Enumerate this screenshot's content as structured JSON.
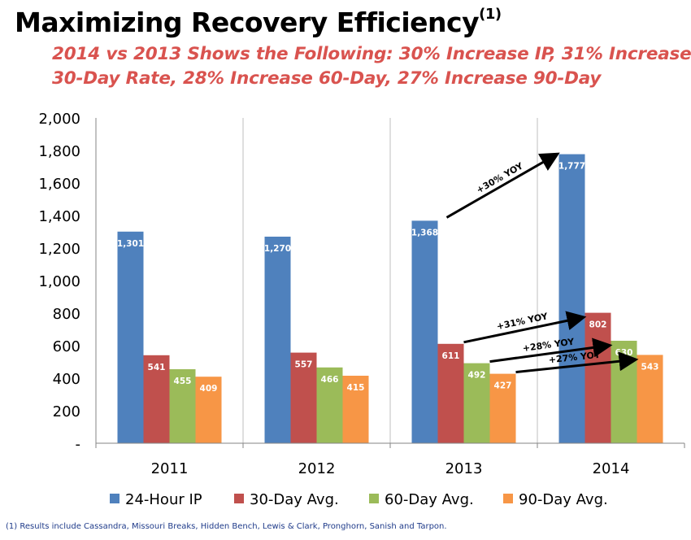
{
  "title": {
    "main": "Maximizing Recovery Efficiency",
    "superscript": "(1)"
  },
  "subtitle": {
    "line1": "2014 vs 2013 Shows the Following: 30% Increase IP, 31% Increase",
    "line2": "30-Day Rate, 28% Increase 60-Day, 27% Increase 90-Day",
    "color": "#d9534f"
  },
  "chart_data": {
    "type": "bar",
    "categories": [
      "2011",
      "2012",
      "2013",
      "2014"
    ],
    "series": [
      {
        "name": "24-Hour IP",
        "values": [
          1301,
          1270,
          1368,
          1777
        ],
        "labels": [
          "1,301",
          "1,270",
          "1,368",
          "1,777"
        ],
        "color": "#4f81bd"
      },
      {
        "name": "30-Day Avg.",
        "values": [
          541,
          557,
          611,
          802
        ],
        "labels": [
          "541",
          "557",
          "611",
          "802"
        ],
        "color": "#c0504d"
      },
      {
        "name": "60-Day Avg.",
        "values": [
          455,
          466,
          492,
          630
        ],
        "labels": [
          "455",
          "466",
          "492",
          "630"
        ],
        "color": "#9bbb59"
      },
      {
        "name": "90-Day Avg.",
        "values": [
          409,
          415,
          427,
          543
        ],
        "labels": [
          "409",
          "415",
          "427",
          "543"
        ],
        "color": "#f79646"
      }
    ],
    "ylim": [
      0,
      2000
    ],
    "yticks": [
      {
        "value": 0,
        "label": "-"
      },
      {
        "value": 200,
        "label": "200"
      },
      {
        "value": 400,
        "label": "400"
      },
      {
        "value": 600,
        "label": "600"
      },
      {
        "value": 800,
        "label": "800"
      },
      {
        "value": 1000,
        "label": "1,000"
      },
      {
        "value": 1200,
        "label": "1,200"
      },
      {
        "value": 1400,
        "label": "1,400"
      },
      {
        "value": 1600,
        "label": "1,600"
      },
      {
        "value": 1800,
        "label": "1,800"
      },
      {
        "value": 2000,
        "label": "2,000"
      }
    ],
    "grid": "vertical lines between categories",
    "legend_position": "bottom",
    "annotations": [
      {
        "text": "+30% YOY",
        "series": 0
      },
      {
        "text": "+31% YOY",
        "series": 1
      },
      {
        "text": "+28% YOY",
        "series": 2
      },
      {
        "text": "+27% YOY",
        "series": 3
      }
    ],
    "annotation_from_category": "2013",
    "annotation_to_category": "2014"
  },
  "footnote": "(1) Results include Cassandra, Missouri Breaks, Hidden Bench, Lewis & Clark, Pronghorn, Sanish and Tarpon."
}
